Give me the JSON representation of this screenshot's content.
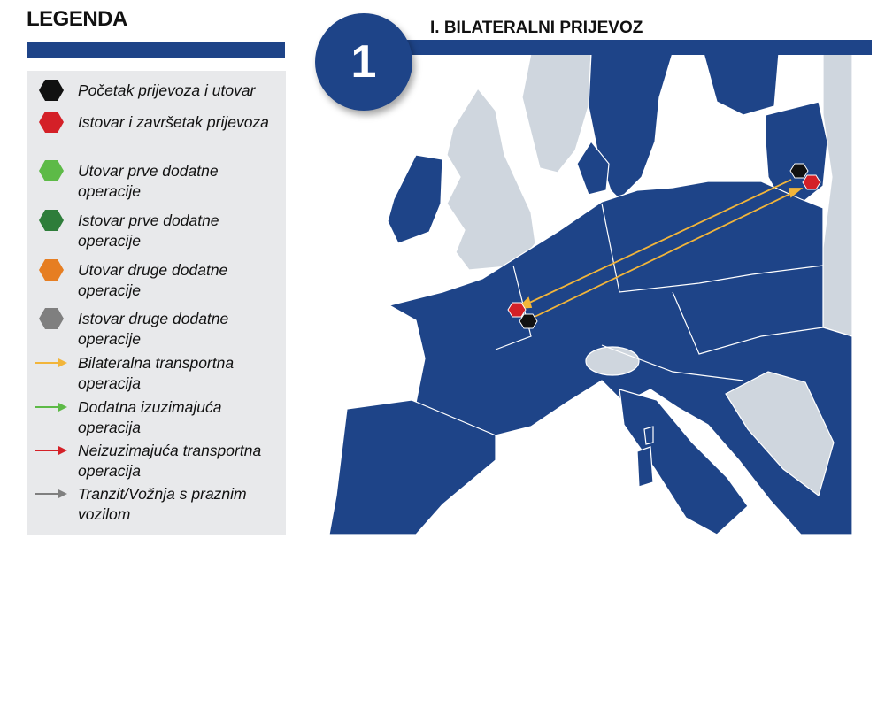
{
  "legend": {
    "title": "LEGENDA",
    "items": [
      {
        "label": "Početak prijevoza i utovar",
        "symbol": "hexagon",
        "color": "#111111"
      },
      {
        "label": "Istovar i završetak prijevoza",
        "symbol": "hexagon",
        "color": "#d42027"
      },
      {
        "label": "Utovar prve dodatne operacije",
        "symbol": "hexagon",
        "color": "#5dba47"
      },
      {
        "label": "Istovar prve dodatne operacije",
        "symbol": "hexagon",
        "color": "#2e7d3a"
      },
      {
        "label": "Utovar druge dodatne operacije",
        "symbol": "hexagon",
        "color": "#e67e22"
      },
      {
        "label": "Istovar druge dodatne operacije",
        "symbol": "hexagon",
        "color": "#7f7f7f"
      },
      {
        "label": "Bilateralna transportna operacija",
        "symbol": "arrow",
        "color": "#f2b53a"
      },
      {
        "label": "Dodatna izuzimajuća operacija",
        "symbol": "arrow",
        "color": "#5dba47"
      },
      {
        "label": "Neizuzimajuća transportna operacija",
        "symbol": "arrow",
        "color": "#d42027"
      },
      {
        "label": "Tranzit/Vožnja s praznim vozilom",
        "symbol": "arrow",
        "color": "#7f7f7f"
      }
    ]
  },
  "header": {
    "number": "1",
    "title": "I. BILATERALNI PRIJEVOZ"
  },
  "map": {
    "colors": {
      "eu": "#1e4488",
      "non_eu": "#cfd6de",
      "sea": "#ffffff",
      "route": "#f2b53a"
    },
    "routes": [
      {
        "from": "Lithuania",
        "to": "France",
        "type": "bilateral"
      },
      {
        "from": "France",
        "to": "Lithuania",
        "type": "bilateral"
      }
    ]
  }
}
